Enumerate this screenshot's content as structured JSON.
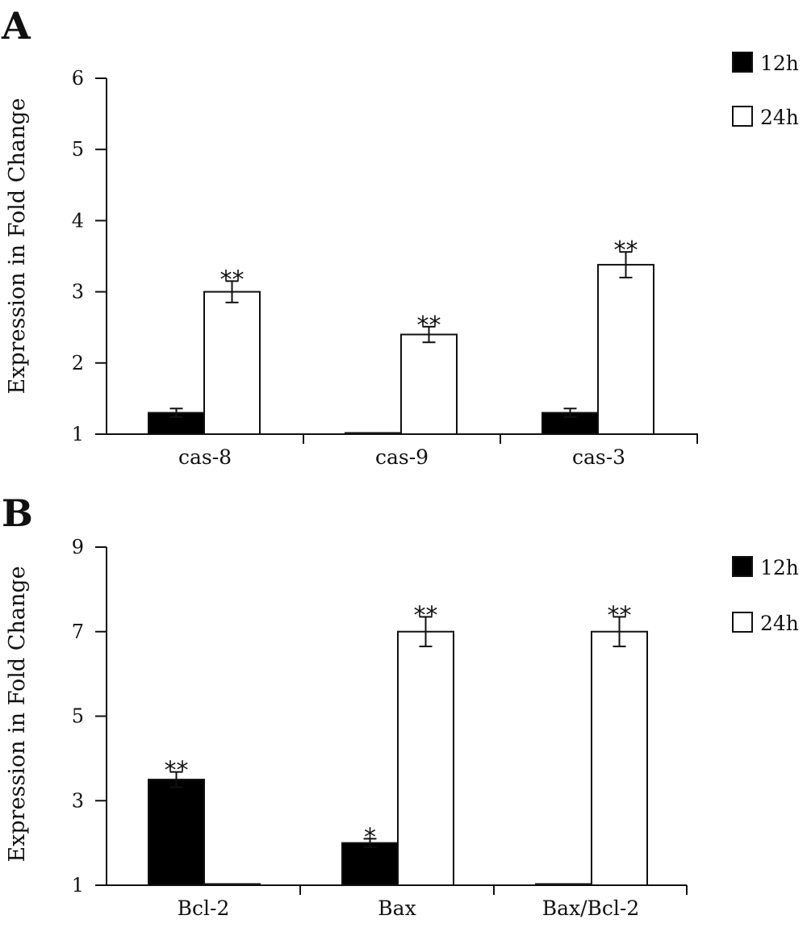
{
  "figure": {
    "panels": [
      {
        "letter": "A"
      },
      {
        "letter": "B"
      }
    ]
  },
  "colors": {
    "series_12h": "#000000",
    "series_24h": "#ffffff",
    "stroke": "#111111"
  },
  "chart_data": [
    {
      "type": "bar",
      "panel": "A",
      "title": "",
      "xlabel": "",
      "ylabel": "Expression in Fold Change",
      "ylim": [
        1,
        6
      ],
      "yticks": [
        1,
        2,
        3,
        4,
        5,
        6
      ],
      "categories": [
        "cas-8",
        "cas-9",
        "cas-3"
      ],
      "series": [
        {
          "name": "12h",
          "values": [
            1.3,
            1.0,
            1.3
          ],
          "errors": [
            0.06,
            0,
            0.06
          ],
          "annotations": [
            "",
            "",
            ""
          ]
        },
        {
          "name": "24h",
          "values": [
            3.0,
            2.4,
            3.38
          ],
          "errors": [
            0.15,
            0.11,
            0.18
          ],
          "annotations": [
            "**",
            "**",
            "**"
          ]
        }
      ],
      "legend": "top-right",
      "grid": false
    },
    {
      "type": "bar",
      "panel": "B",
      "title": "",
      "xlabel": "",
      "ylabel": "Expression in Fold Change",
      "ylim": [
        1,
        9
      ],
      "yticks": [
        1,
        3,
        5,
        7,
        9
      ],
      "categories": [
        "Bcl-2",
        "Bax",
        "Bax/Bcl-2"
      ],
      "series": [
        {
          "name": "12h",
          "values": [
            3.5,
            2.0,
            1.0
          ],
          "errors": [
            0.18,
            0.1,
            0
          ],
          "annotations": [
            "**",
            "*",
            ""
          ]
        },
        {
          "name": "24h",
          "values": [
            1.0,
            7.0,
            7.0
          ],
          "errors": [
            0,
            0.35,
            0.35
          ],
          "annotations": [
            "",
            "**",
            "**"
          ]
        }
      ],
      "legend": "top-right",
      "grid": false
    }
  ]
}
